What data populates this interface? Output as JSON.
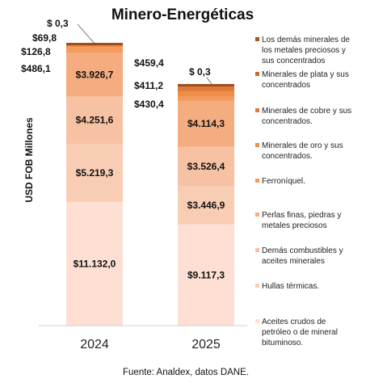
{
  "chart_data": {
    "type": "bar",
    "stacked": true,
    "title": "Minero-Energéticas",
    "ylabel": "USD FOB Millones",
    "xlabel": "",
    "categories": [
      "2024",
      "2025"
    ],
    "series": [
      {
        "name": "Aceites crudos de petróleo o de mineral bituminoso.",
        "color": "#fde0d3",
        "values": [
          11132.0,
          9117.3
        ],
        "labels": [
          "$11.132,0",
          "$9.117,3"
        ]
      },
      {
        "name": "Hullas térmicas.",
        "color": "#f9cdb4",
        "values": [
          5219.3,
          3446.9
        ],
        "labels": [
          "$5.219,3",
          "$3.446,9"
        ]
      },
      {
        "name": "Demás combustibles y aceites minerales",
        "color": "#f7c2a4",
        "values": [
          4251.6,
          3526.4
        ],
        "labels": [
          "$4.251,6",
          "$3.526,4"
        ]
      },
      {
        "name": "Perlas finas, piedras y metales preciosos",
        "color": "#f5ac7f",
        "values": [
          3926.7,
          4114.3
        ],
        "labels": [
          "$3.926,7",
          "$4.114,3"
        ]
      },
      {
        "name": "Ferroníquel.",
        "color": "#f29b5c",
        "values": [
          486.1,
          430.4
        ],
        "labels": [
          "$486,1",
          "$430,4"
        ]
      },
      {
        "name": "Minerales de oro y sus concentrados.",
        "color": "#ef8e46",
        "values": [
          126.8,
          411.2
        ],
        "labels": [
          "$126,8",
          "$411,2"
        ]
      },
      {
        "name": "Minerales de cobre y sus concentrados.",
        "color": "#de7a3a",
        "values": [
          69.8,
          459.4
        ],
        "labels": [
          "$69,8",
          "$459,4"
        ]
      },
      {
        "name": "Minerales de plata y sus concentrados",
        "color": "#c9692e",
        "values": [
          0.3,
          0.3
        ],
        "labels": [
          "$ 0,3",
          "$ 0,3"
        ]
      },
      {
        "name": "Los demás minerales de los metales preciosos y sus concentrados",
        "color": "#a85522",
        "values": [
          0.0,
          0.0
        ],
        "labels": [
          "",
          ""
        ]
      }
    ],
    "legend_position": "right",
    "grid": false
  },
  "source": "Fuente: Analdex, datos DANE."
}
